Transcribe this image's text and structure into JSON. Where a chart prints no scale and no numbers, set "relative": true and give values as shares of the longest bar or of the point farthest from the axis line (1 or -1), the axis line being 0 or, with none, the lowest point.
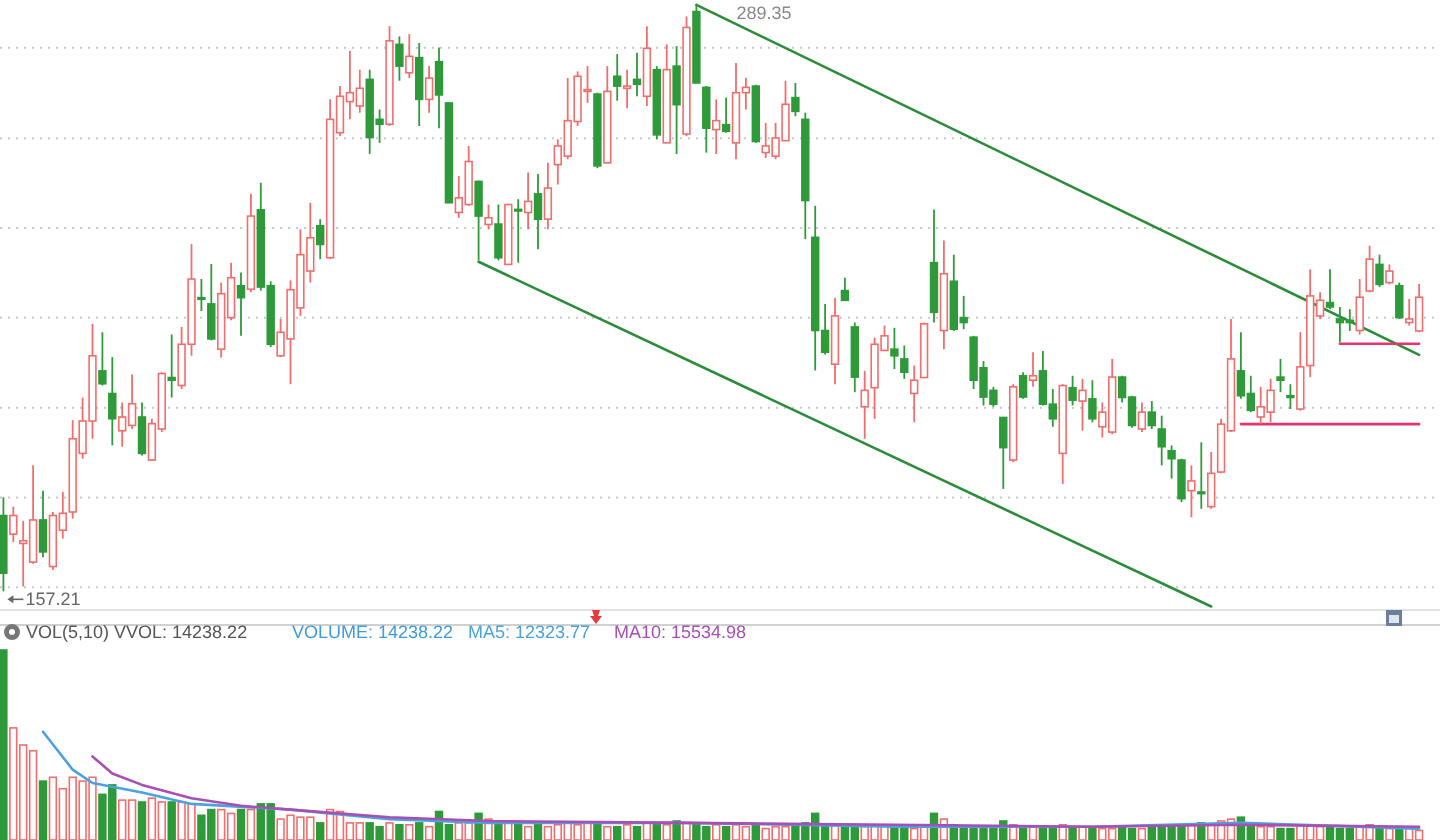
{
  "chart_data": [
    {
      "type": "candlestick",
      "categories": [
        null,
        null,
        null,
        null,
        null,
        null,
        null,
        null,
        null,
        null,
        null,
        null,
        null,
        null,
        null,
        null,
        null,
        null,
        null,
        null,
        null,
        null,
        null,
        null,
        null,
        null,
        null,
        null,
        null,
        null,
        null,
        null,
        null,
        null,
        null,
        null,
        null,
        null,
        null,
        null,
        null,
        null,
        null,
        null,
        null,
        null,
        null,
        null,
        null,
        null,
        null,
        null,
        null,
        null,
        null,
        null,
        null,
        null,
        null,
        null,
        null,
        null,
        null,
        null,
        null,
        null,
        null,
        null,
        null,
        null,
        null,
        null,
        null,
        null,
        null,
        null,
        null,
        null,
        null,
        null,
        null,
        null,
        null,
        null,
        null,
        null,
        null,
        null,
        null,
        null,
        null,
        null,
        null,
        null,
        null,
        null,
        null,
        null,
        null,
        null,
        null,
        null,
        null,
        null,
        null,
        null,
        null,
        null,
        null,
        null,
        null,
        null,
        null,
        null,
        null,
        null,
        null,
        null,
        null,
        null,
        null,
        null,
        null,
        null,
        null,
        null,
        null,
        null,
        null,
        null,
        null,
        null,
        null,
        null,
        null,
        null,
        null,
        null,
        null,
        null,
        null,
        null,
        null,
        null
      ],
      "ohlc": [
        [
          174.3,
          178.4,
          157.21,
          161.3
        ],
        [
          170.1,
          176.3,
          168.3,
          174.3
        ],
        [
          168.0,
          173.1,
          158.3,
          168.6
        ],
        [
          163.8,
          185.6,
          163.4,
          173.3
        ],
        [
          173.3,
          179.9,
          164.9,
          166.1
        ],
        [
          162.8,
          175.1,
          162.0,
          174.3
        ],
        [
          171.0,
          179.6,
          169.1,
          174.8
        ],
        [
          175.1,
          195.8,
          173.6,
          191.6
        ],
        [
          188.3,
          200.9,
          187.1,
          195.6
        ],
        [
          195.6,
          217.5,
          191.6,
          210.3
        ],
        [
          206.9,
          215.6,
          203.6,
          204.0
        ],
        [
          201.8,
          210.0,
          190.1,
          196.1
        ],
        [
          193.4,
          199.8,
          189.8,
          196.5
        ],
        [
          194.6,
          206.1,
          193.8,
          199.5
        ],
        [
          196.5,
          199.8,
          187.8,
          188.3
        ],
        [
          186.8,
          196.1,
          186.6,
          195.0
        ],
        [
          193.8,
          206.6,
          193.1,
          206.3
        ],
        [
          205.4,
          215.1,
          200.9,
          204.8
        ],
        [
          203.6,
          216.8,
          202.8,
          212.9
        ],
        [
          212.9,
          235.5,
          210.3,
          227.6
        ],
        [
          223.4,
          227.6,
          220.4,
          223.1
        ],
        [
          222.0,
          231.0,
          213.8,
          214.1
        ],
        [
          211.8,
          226.8,
          209.9,
          224.3
        ],
        [
          218.9,
          231.3,
          218.3,
          227.9
        ],
        [
          226.1,
          229.1,
          214.8,
          223.4
        ],
        [
          225.3,
          246.8,
          224.6,
          241.8
        ],
        [
          243.2,
          249.3,
          225.0,
          225.8
        ],
        [
          226.1,
          227.1,
          212.3,
          212.9
        ],
        [
          210.3,
          218.6,
          210.0,
          215.6
        ],
        [
          214.1,
          227.3,
          203.9,
          225.2
        ],
        [
          221.1,
          238.8,
          219.3,
          233.1
        ],
        [
          229.4,
          244.8,
          226.8,
          236.9
        ],
        [
          239.6,
          241.1,
          232.1,
          235.4
        ],
        [
          232.4,
          268.1,
          232.1,
          263.6
        ],
        [
          260.6,
          271.1,
          259.8,
          268.8
        ],
        [
          267.6,
          279.0,
          263.6,
          269.6
        ],
        [
          266.6,
          274.8,
          265.1,
          270.6
        ],
        [
          272.6,
          274.8,
          255.8,
          259.5
        ],
        [
          263.6,
          265.8,
          258.3,
          262.5
        ],
        [
          262.5,
          284.6,
          262.1,
          281.3
        ],
        [
          280.5,
          282.3,
          272.3,
          275.6
        ],
        [
          274.1,
          282.8,
          272.9,
          277.8
        ],
        [
          277.5,
          280.8,
          262.1,
          268.1
        ],
        [
          268.1,
          275.6,
          265.1,
          272.9
        ],
        [
          276.6,
          279.8,
          261.6,
          269.1
        ],
        [
          267.3,
          267.3,
          244.8,
          244.8
        ],
        [
          242.6,
          250.8,
          241.4,
          245.9
        ],
        [
          244.4,
          257.6,
          244.1,
          254.1
        ],
        [
          249.6,
          249.8,
          231.8,
          241.8
        ],
        [
          239.9,
          244.4,
          238.8,
          241.4
        ],
        [
          240.0,
          244.4,
          231.8,
          232.4
        ],
        [
          230.9,
          244.5,
          230.9,
          244.4
        ],
        [
          243.3,
          245.6,
          231.3,
          243.0
        ],
        [
          242.6,
          251.6,
          238.8,
          245.1
        ],
        [
          246.8,
          251.3,
          234.3,
          241.1
        ],
        [
          241.1,
          253.8,
          238.8,
          248.1
        ],
        [
          253.4,
          259.1,
          248.9,
          257.6
        ],
        [
          255.3,
          272.9,
          254.6,
          263.3
        ],
        [
          263.1,
          274.4,
          262.1,
          273.3
        ],
        [
          269.9,
          275.6,
          267.3,
          270.3
        ],
        [
          269.3,
          269.6,
          252.6,
          253.1
        ],
        [
          253.8,
          275.6,
          253.8,
          269.9
        ],
        [
          273.3,
          278.3,
          267.8,
          271.1
        ],
        [
          270.6,
          274.8,
          266.1,
          271.1
        ],
        [
          272.6,
          278.6,
          268.8,
          271.5
        ],
        [
          268.8,
          284.6,
          266.6,
          279.6
        ],
        [
          274.8,
          275.6,
          259.1,
          260.1
        ],
        [
          258.3,
          280.5,
          258.3,
          274.8
        ],
        [
          275.6,
          280.1,
          255.8,
          266.9
        ],
        [
          260.3,
          286.8,
          259.8,
          284.3
        ],
        [
          287.9,
          289.35,
          271.8,
          271.8
        ],
        [
          270.8,
          271.1,
          256.1,
          261.6
        ],
        [
          261.3,
          268.1,
          255.8,
          263.3
        ],
        [
          262.4,
          268.5,
          260.6,
          260.9
        ],
        [
          258.3,
          276.3,
          254.6,
          269.6
        ],
        [
          269.6,
          273.0,
          265.8,
          270.8
        ],
        [
          271.1,
          271.4,
          258.3,
          258.6
        ],
        [
          256.1,
          262.8,
          254.9,
          257.6
        ],
        [
          255.3,
          262.8,
          254.6,
          259.4
        ],
        [
          258.8,
          272.3,
          258.8,
          267.0
        ],
        [
          268.5,
          271.8,
          264.3,
          265.4
        ],
        [
          263.6,
          265.1,
          236.6,
          245.3
        ],
        [
          237.0,
          244.1,
          207.0,
          216.0
        ],
        [
          216.0,
          222.0,
          210.6,
          211.1
        ],
        [
          208.4,
          223.4,
          203.9,
          219.3
        ],
        [
          225.0,
          227.9,
          222.8,
          222.8
        ],
        [
          216.8,
          217.8,
          202.1,
          205.5
        ],
        [
          198.8,
          206.9,
          191.6,
          202.5
        ],
        [
          203.1,
          214.4,
          196.1,
          212.9
        ],
        [
          211.5,
          217.1,
          211.4,
          214.8
        ],
        [
          211.8,
          216.6,
          207.3,
          210.3
        ],
        [
          209.6,
          212.6,
          205.1,
          206.6
        ],
        [
          201.8,
          208.1,
          195.3,
          204.8
        ],
        [
          205.4,
          217.8,
          205.4,
          217.5
        ],
        [
          231.3,
          243.3,
          217.8,
          220.1
        ],
        [
          216.0,
          236.3,
          211.8,
          228.8
        ],
        [
          227.1,
          233.1,
          215.9,
          216.3
        ],
        [
          218.9,
          223.8,
          216.3,
          217.8
        ],
        [
          214.5,
          214.8,
          202.8,
          204.8
        ],
        [
          207.6,
          209.1,
          199.1,
          201.0
        ],
        [
          202.5,
          203.3,
          198.8,
          199.4
        ],
        [
          196.4,
          196.4,
          180.3,
          189.6
        ],
        [
          186.8,
          203.9,
          186.3,
          203.3
        ],
        [
          205.8,
          206.6,
          200.6,
          201.0
        ],
        [
          204.8,
          211.1,
          203.3,
          205.8
        ],
        [
          206.9,
          211.4,
          199.1,
          199.4
        ],
        [
          199.4,
          202.8,
          194.3,
          196.1
        ],
        [
          188.3,
          203.9,
          181.4,
          203.6
        ],
        [
          203.1,
          205.8,
          199.1,
          200.3
        ],
        [
          200.1,
          205.1,
          193.4,
          202.5
        ],
        [
          200.6,
          204.8,
          195.3,
          196.1
        ],
        [
          194.3,
          199.8,
          191.9,
          197.6
        ],
        [
          193.1,
          209.6,
          192.6,
          205.5
        ],
        [
          205.5,
          205.8,
          199.8,
          200.9
        ],
        [
          201.0,
          201.3,
          194.1,
          194.6
        ],
        [
          193.8,
          199.8,
          193.1,
          197.6
        ],
        [
          197.6,
          200.1,
          193.8,
          194.6
        ],
        [
          193.8,
          196.8,
          185.6,
          189.8
        ],
        [
          188.9,
          190.1,
          182.6,
          187.1
        ],
        [
          186.8,
          187.1,
          177.3,
          178.1
        ],
        [
          179.9,
          185.6,
          173.9,
          182.1
        ],
        [
          179.6,
          190.8,
          175.8,
          179.3
        ],
        [
          176.3,
          188.6,
          175.8,
          183.8
        ],
        [
          184.1,
          196.1,
          183.8,
          194.9
        ],
        [
          193.4,
          218.6,
          193.1,
          209.6
        ],
        [
          206.9,
          215.6,
          200.6,
          201.3
        ],
        [
          201.8,
          205.8,
          197.6,
          198.0
        ],
        [
          196.5,
          203.3,
          194.9,
          198.8
        ],
        [
          197.6,
          205.1,
          195.3,
          202.5
        ],
        [
          205.5,
          209.6,
          202.1,
          204.8
        ],
        [
          201.3,
          203.9,
          198.3,
          200.9
        ],
        [
          198.3,
          215.6,
          197.9,
          207.8
        ],
        [
          208.1,
          229.8,
          205.5,
          223.8
        ],
        [
          219.3,
          224.6,
          218.6,
          222.8
        ],
        [
          222.3,
          229.8,
          220.8,
          221.3
        ],
        [
          218.6,
          221.3,
          213.3,
          217.8
        ],
        [
          218.3,
          220.8,
          215.9,
          217.8
        ],
        [
          216.0,
          227.6,
          215.1,
          223.5
        ],
        [
          224.9,
          235.1,
          224.6,
          232.1
        ],
        [
          230.9,
          233.1,
          225.8,
          226.4
        ],
        [
          226.8,
          230.9,
          226.4,
          229.4
        ],
        [
          226.1,
          226.8,
          218.6,
          218.9
        ],
        [
          217.8,
          223.1,
          217.1,
          218.6
        ],
        [
          215.9,
          226.5,
          215.6,
          223.5
        ]
      ],
      "series": [
        {
          "type": "line",
          "values": [
            null,
            null,
            null,
            null,
            null,
            null,
            null,
            null,
            null,
            null,
            null,
            null,
            null,
            null,
            null,
            null,
            null,
            null,
            null,
            null,
            null,
            null,
            null,
            null,
            null,
            null,
            null,
            null,
            null,
            null,
            null,
            null,
            null,
            null,
            null,
            null,
            null,
            null,
            null,
            null,
            null,
            null,
            null,
            null,
            null,
            null,
            null,
            null,
            null,
            null,
            null,
            null,
            null,
            null,
            null,
            null,
            null,
            null,
            null,
            null,
            null,
            null,
            null,
            null,
            null,
            null,
            null,
            null,
            null,
            null,
            289.4,
            null,
            null,
            null,
            null,
            null,
            null,
            null,
            null,
            null,
            null,
            null,
            null,
            null,
            null,
            null,
            null,
            null,
            null,
            null,
            null,
            null,
            null,
            null,
            null,
            null,
            null,
            null,
            null,
            null,
            null,
            null,
            null,
            null,
            null,
            null,
            null,
            null,
            null,
            null,
            null,
            null,
            null,
            null,
            null,
            null,
            null,
            null,
            null,
            null,
            null,
            null,
            null,
            null,
            null,
            null,
            null,
            null,
            null,
            null,
            null,
            null,
            null,
            null,
            null,
            null,
            null,
            null,
            null,
            null,
            null,
            null,
            null,
            210.5
          ],
          "color": "#2e8b3a"
        },
        {
          "type": "line",
          "values": [
            null,
            null,
            null,
            null,
            null,
            null,
            null,
            null,
            null,
            null,
            null,
            null,
            null,
            null,
            null,
            null,
            null,
            null,
            null,
            null,
            null,
            null,
            null,
            null,
            null,
            null,
            null,
            null,
            null,
            null,
            null,
            null,
            null,
            null,
            null,
            null,
            null,
            null,
            null,
            null,
            null,
            null,
            null,
            null,
            null,
            null,
            null,
            null,
            231.5,
            null,
            null,
            null,
            null,
            null,
            null,
            null,
            null,
            null,
            null,
            null,
            null,
            null,
            null,
            null,
            null,
            null,
            null,
            null,
            null,
            null,
            null,
            null,
            null,
            null,
            null,
            null,
            null,
            null,
            null,
            null,
            null,
            null,
            null,
            null,
            null,
            null,
            null,
            null,
            null,
            null,
            null,
            null,
            null,
            null,
            null,
            null,
            null,
            null,
            null,
            null,
            null,
            null,
            null,
            null,
            null,
            null,
            null,
            null,
            null,
            null,
            null,
            null,
            null,
            null,
            null,
            null,
            null,
            null,
            null,
            null,
            null,
            null,
            153.8,
            null,
            null,
            null,
            null,
            null,
            null,
            null,
            null,
            null,
            null,
            null,
            null,
            null,
            null,
            null,
            null,
            null,
            null,
            null,
            null,
            null
          ],
          "color": "#2e8b3a"
        },
        {
          "type": "line",
          "values": [
            null,
            null,
            null,
            null,
            null,
            null,
            null,
            null,
            null,
            null,
            null,
            null,
            null,
            null,
            null,
            null,
            null,
            null,
            null,
            null,
            null,
            null,
            null,
            null,
            null,
            null,
            null,
            null,
            null,
            null,
            null,
            null,
            null,
            null,
            null,
            null,
            null,
            null,
            null,
            null,
            null,
            null,
            null,
            null,
            null,
            null,
            null,
            null,
            null,
            null,
            null,
            null,
            null,
            null,
            null,
            null,
            null,
            null,
            null,
            null,
            null,
            null,
            null,
            null,
            null,
            null,
            null,
            null,
            null,
            null,
            null,
            null,
            null,
            null,
            null,
            null,
            null,
            null,
            null,
            null,
            null,
            null,
            null,
            null,
            null,
            null,
            null,
            null,
            null,
            null,
            null,
            null,
            null,
            null,
            null,
            null,
            null,
            null,
            null,
            null,
            null,
            null,
            null,
            null,
            null,
            null,
            null,
            null,
            null,
            null,
            null,
            null,
            null,
            null,
            null,
            null,
            null,
            null,
            null,
            null,
            null,
            null,
            null,
            null,
            null,
            null,
            null,
            null,
            null,
            null,
            null,
            null,
            null,
            null,
            null,
            213.0,
            null,
            null,
            null,
            null,
            null,
            null,
            null,
            213.0
          ],
          "color": "#e8336d"
        },
        {
          "type": "line",
          "values": [
            null,
            null,
            null,
            null,
            null,
            null,
            null,
            null,
            null,
            null,
            null,
            null,
            null,
            null,
            null,
            null,
            null,
            null,
            null,
            null,
            null,
            null,
            null,
            null,
            null,
            null,
            null,
            null,
            null,
            null,
            null,
            null,
            null,
            null,
            null,
            null,
            null,
            null,
            null,
            null,
            null,
            null,
            null,
            null,
            null,
            null,
            null,
            null,
            null,
            null,
            null,
            null,
            null,
            null,
            null,
            null,
            null,
            null,
            null,
            null,
            null,
            null,
            null,
            null,
            null,
            null,
            null,
            null,
            null,
            null,
            null,
            null,
            null,
            null,
            null,
            null,
            null,
            null,
            null,
            null,
            null,
            null,
            null,
            null,
            null,
            null,
            null,
            null,
            null,
            null,
            null,
            null,
            null,
            null,
            null,
            null,
            null,
            null,
            null,
            null,
            null,
            null,
            null,
            null,
            null,
            null,
            null,
            null,
            null,
            null,
            null,
            null,
            null,
            null,
            null,
            null,
            null,
            null,
            null,
            null,
            null,
            null,
            null,
            null,
            null,
            194.9,
            null,
            null,
            null,
            null,
            null,
            null,
            null,
            null,
            null,
            null,
            null,
            null,
            null,
            null,
            null,
            null,
            null,
            194.9
          ],
          "color": "#e8336d"
        }
      ],
      "ylim": [
        153,
        290.5
      ],
      "yticks": [
        {
          "value": 279.75,
          "label": null
        },
        {
          "value": 259.35,
          "label": null
        },
        {
          "value": 239.1,
          "label": null
        },
        {
          "value": 218.85,
          "label": null
        },
        {
          "value": 198.6,
          "label": null
        },
        {
          "value": 178.35,
          "label": null
        },
        {
          "value": 158.1,
          "label": null
        }
      ],
      "grid": "y",
      "annotations": [
        "289.35",
        "157.21"
      ]
    },
    {
      "type": "bar",
      "relative": true,
      "title": "VOL(5,10)  VVOL: 14238.22",
      "annotations": [
        "VOLUME: 14238.22"
      ],
      "legend": "top left",
      "categories": [
        null,
        null,
        null,
        null,
        null,
        null,
        null,
        null,
        null,
        null,
        null,
        null,
        null,
        null,
        null,
        null,
        null,
        null,
        null,
        null,
        null,
        null,
        null,
        null,
        null,
        null,
        null,
        null,
        null,
        null,
        null,
        null,
        null,
        null,
        null,
        null,
        null,
        null,
        null,
        null,
        null,
        null,
        null,
        null,
        null,
        null,
        null,
        null,
        null,
        null,
        null,
        null,
        null,
        null,
        null,
        null,
        null,
        null,
        null,
        null,
        null,
        null,
        null,
        null,
        null,
        null,
        null,
        null,
        null,
        null,
        null,
        null,
        null,
        null,
        null,
        null,
        null,
        null,
        null,
        null,
        null,
        null,
        null,
        null,
        null,
        null,
        null,
        null,
        null,
        null,
        null,
        null,
        null,
        null,
        null,
        null,
        null,
        null,
        null,
        null,
        null,
        null,
        null,
        null,
        null,
        null,
        null,
        null,
        null,
        null,
        null,
        null,
        null,
        null,
        null,
        null,
        null,
        null,
        null,
        null,
        null,
        null,
        null,
        null,
        null,
        null,
        null,
        null,
        null,
        null,
        null,
        null,
        null,
        null,
        null,
        null,
        null,
        null,
        null,
        null,
        null,
        null,
        null,
        null
      ],
      "values": [
        1,
        0.59,
        0.5,
        0.47,
        0.31,
        0.33,
        0.27,
        0.33,
        0.31,
        0.33,
        0.24,
        0.29,
        0.21,
        0.21,
        0.2,
        0.22,
        0.2,
        0.2,
        0.2,
        0.19,
        0.13,
        0.16,
        0.16,
        0.14,
        0.16,
        0.16,
        0.19,
        0.19,
        0.11,
        0.13,
        0.12,
        0.12,
        0.09,
        0.16,
        0.15,
        0.09,
        0.09,
        0.09,
        0.07,
        0.09,
        0.08,
        0.08,
        0.09,
        0.07,
        0.15,
        0.08,
        0.09,
        0.09,
        0.14,
        0.11,
        0.09,
        0.09,
        0.09,
        0.07,
        0.08,
        0.07,
        0.08,
        0.09,
        0.08,
        0.09,
        0.09,
        0.07,
        0.07,
        0.08,
        0.07,
        0.09,
        0.08,
        0.08,
        0.1,
        0.09,
        0.09,
        0.07,
        0.08,
        0.07,
        0.08,
        0.07,
        0.08,
        0.06,
        0.07,
        0.07,
        0.07,
        0.09,
        0.14,
        0.08,
        0.08,
        0.07,
        0.08,
        0.07,
        0.08,
        0.08,
        0.07,
        0.07,
        0.06,
        0.08,
        0.14,
        0.11,
        0.08,
        0.07,
        0.07,
        0.07,
        0.06,
        0.1,
        0.08,
        0.07,
        0.07,
        0.07,
        0.06,
        0.08,
        0.07,
        0.07,
        0.07,
        0.06,
        0.06,
        0.07,
        0.06,
        0.06,
        0.07,
        0.08,
        0.07,
        0.07,
        0.08,
        0.09,
        0.08,
        0.1,
        0.11,
        0.12,
        0.09,
        0.07,
        0.07,
        0.06,
        0.06,
        0.08,
        0.08,
        0.07,
        0.07,
        0.06,
        0.06,
        0.07,
        0.08,
        0.07,
        0.06,
        0.07,
        0.06,
        0.05
      ],
      "colors": [
        "#2e9a3a",
        "#f26d6d",
        "#f26d6d",
        "#f26d6d",
        "#2e9a3a",
        "#f26d6d",
        "#f26d6d",
        "#f26d6d",
        "#f26d6d",
        "#f26d6d",
        "#2e9a3a",
        "#2e9a3a",
        "#f26d6d",
        "#f26d6d",
        "#2e9a3a",
        "#f26d6d",
        "#f26d6d",
        "#2e9a3a",
        "#f26d6d",
        "#f26d6d",
        "#2e9a3a",
        "#2e9a3a",
        "#f26d6d",
        "#f26d6d",
        "#2e9a3a",
        "#f26d6d",
        "#2e9a3a",
        "#2e9a3a",
        "#f26d6d",
        "#f26d6d",
        "#f26d6d",
        "#f26d6d",
        "#2e9a3a",
        "#f26d6d",
        "#f26d6d",
        "#f26d6d",
        "#f26d6d",
        "#2e9a3a",
        "#2e9a3a",
        "#f26d6d",
        "#2e9a3a",
        "#f26d6d",
        "#2e9a3a",
        "#f26d6d",
        "#2e9a3a",
        "#2e9a3a",
        "#f26d6d",
        "#f26d6d",
        "#2e9a3a",
        "#f26d6d",
        "#2e9a3a",
        "#f26d6d",
        "#2e9a3a",
        "#f26d6d",
        "#2e9a3a",
        "#f26d6d",
        "#f26d6d",
        "#f26d6d",
        "#f26d6d",
        "#f26d6d",
        "#2e9a3a",
        "#f26d6d",
        "#2e9a3a",
        "#f26d6d",
        "#2e9a3a",
        "#f26d6d",
        "#2e9a3a",
        "#f26d6d",
        "#2e9a3a",
        "#f26d6d",
        "#2e9a3a",
        "#2e9a3a",
        "#f26d6d",
        "#2e9a3a",
        "#f26d6d",
        "#f26d6d",
        "#2e9a3a",
        "#f26d6d",
        "#f26d6d",
        "#f26d6d",
        "#2e9a3a",
        "#2e9a3a",
        "#2e9a3a",
        "#2e9a3a",
        "#f26d6d",
        "#2e9a3a",
        "#2e9a3a",
        "#f26d6d",
        "#f26d6d",
        "#f26d6d",
        "#2e9a3a",
        "#2e9a3a",
        "#f26d6d",
        "#f26d6d",
        "#2e9a3a",
        "#f26d6d",
        "#2e9a3a",
        "#2e9a3a",
        "#2e9a3a",
        "#2e9a3a",
        "#2e9a3a",
        "#2e9a3a",
        "#f26d6d",
        "#2e9a3a",
        "#f26d6d",
        "#2e9a3a",
        "#2e9a3a",
        "#f26d6d",
        "#2e9a3a",
        "#f26d6d",
        "#2e9a3a",
        "#f26d6d",
        "#f26d6d",
        "#2e9a3a",
        "#2e9a3a",
        "#f26d6d",
        "#2e9a3a",
        "#2e9a3a",
        "#2e9a3a",
        "#2e9a3a",
        "#f26d6d",
        "#2e9a3a",
        "#f26d6d",
        "#f26d6d",
        "#f26d6d",
        "#2e9a3a",
        "#2e9a3a",
        "#f26d6d",
        "#f26d6d",
        "#2e9a3a",
        "#2e9a3a",
        "#f26d6d",
        "#f26d6d",
        "#f26d6d",
        "#2e9a3a",
        "#2e9a3a",
        "#2e9a3a",
        "#f26d6d",
        "#f26d6d",
        "#2e9a3a",
        "#f26d6d",
        "#2e9a3a",
        "#f26d6d",
        "#f26d6d"
      ],
      "series": [
        {
          "type": "line",
          "name": "MA5: 12323.77",
          "color": "#4aa3e0",
          "values": [
            null,
            null,
            null,
            null,
            0.57,
            null,
            null,
            0.37,
            null,
            0.3,
            null,
            null,
            null,
            null,
            0.25,
            null,
            null,
            null,
            null,
            0.19,
            null,
            null,
            null,
            null,
            null,
            null,
            null,
            null,
            null,
            0.16,
            null,
            null,
            null,
            null,
            null,
            null,
            null,
            null,
            null,
            0.11,
            null,
            null,
            null,
            null,
            null,
            null,
            null,
            null,
            null,
            0.09,
            null,
            null,
            null,
            null,
            null,
            null,
            null,
            null,
            null,
            null,
            null,
            null,
            null,
            null,
            null,
            null,
            null,
            null,
            null,
            0.09,
            null,
            null,
            null,
            null,
            null,
            null,
            null,
            null,
            null,
            null,
            null,
            null,
            null,
            null,
            null,
            null,
            null,
            null,
            null,
            null,
            0.07,
            null,
            null,
            null,
            null,
            null,
            null,
            null,
            null,
            null,
            null,
            null,
            null,
            null,
            null,
            null,
            null,
            null,
            null,
            null,
            0.07,
            null,
            null,
            null,
            null,
            null,
            null,
            null,
            null,
            null,
            null,
            null,
            null,
            null,
            null,
            0.09,
            null,
            null,
            null,
            null,
            null,
            null,
            null,
            null,
            null,
            null,
            null,
            null,
            null,
            null,
            null,
            null,
            null,
            0.06
          ]
        },
        {
          "type": "line",
          "name": "MA10: 15534.98",
          "color": "#a74fb5",
          "values": [
            null,
            null,
            null,
            null,
            null,
            null,
            null,
            null,
            null,
            0.44,
            null,
            0.35,
            null,
            null,
            0.29,
            null,
            null,
            null,
            null,
            0.22,
            null,
            null,
            null,
            null,
            0.18,
            null,
            null,
            null,
            null,
            0.16,
            null,
            null,
            null,
            null,
            null,
            null,
            null,
            null,
            null,
            0.12,
            null,
            null,
            null,
            null,
            null,
            null,
            null,
            null,
            null,
            0.1,
            null,
            null,
            null,
            null,
            null,
            null,
            null,
            null,
            null,
            null,
            null,
            null,
            null,
            null,
            null,
            null,
            null,
            null,
            null,
            0.09,
            null,
            null,
            null,
            null,
            null,
            null,
            null,
            null,
            null,
            null,
            null,
            null,
            null,
            null,
            null,
            null,
            null,
            null,
            null,
            null,
            0.08,
            null,
            null,
            null,
            null,
            null,
            null,
            null,
            null,
            null,
            null,
            null,
            null,
            null,
            null,
            null,
            null,
            null,
            null,
            null,
            0.07,
            null,
            null,
            null,
            null,
            null,
            null,
            null,
            null,
            null,
            null,
            null,
            null,
            null,
            null,
            0.08,
            null,
            null,
            null,
            null,
            null,
            null,
            null,
            null,
            null,
            null,
            null,
            null,
            null,
            null,
            null,
            null,
            null,
            0.07
          ]
        }
      ]
    }
  ]
}
